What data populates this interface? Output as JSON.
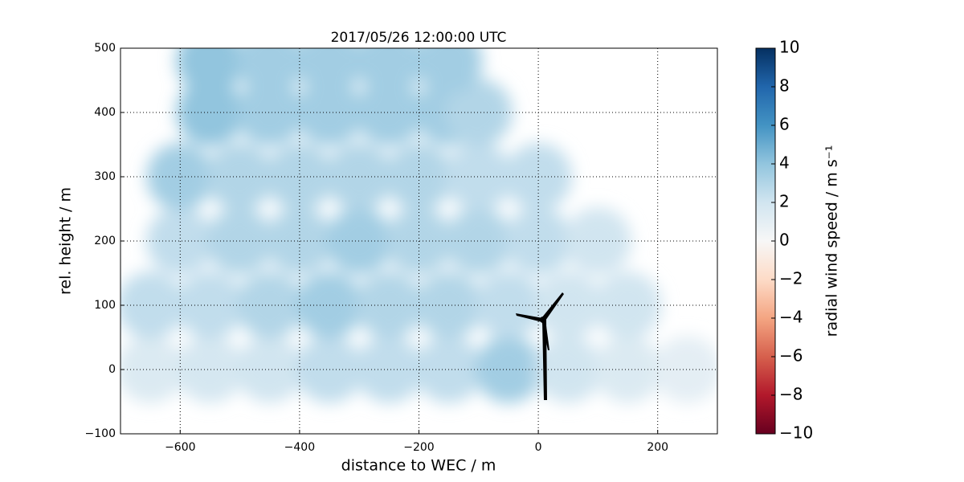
{
  "chart_data": {
    "type": "scatter",
    "title": "2017/05/26 12:00:00 UTC",
    "xlabel": "distance to WEC / m",
    "ylabel": "rel. height / m",
    "x": [
      -650,
      -550,
      -450,
      -350,
      -250,
      -150,
      -50,
      50,
      150,
      250,
      -650,
      -550,
      -450,
      -350,
      -250,
      -150,
      -50,
      50,
      150,
      -600,
      -500,
      -400,
      -300,
      -200,
      -100,
      0,
      100,
      -600,
      -500,
      -400,
      -300,
      -200,
      -100,
      0,
      -550,
      -450,
      -350,
      -250,
      -150,
      -100,
      -550,
      -450,
      -350,
      -250,
      -150
    ],
    "y": [
      0,
      0,
      0,
      0,
      0,
      0,
      0,
      0,
      0,
      0,
      100,
      100,
      100,
      100,
      100,
      100,
      100,
      100,
      100,
      200,
      200,
      200,
      200,
      200,
      200,
      200,
      200,
      300,
      300,
      300,
      300,
      300,
      300,
      300,
      400,
      400,
      400,
      400,
      400,
      400,
      480,
      480,
      480,
      480,
      480
    ],
    "values": [
      1.5,
      1.8,
      2,
      2.5,
      2.5,
      2.5,
      3.5,
      2,
      1.5,
      1,
      2.5,
      2.5,
      3,
      3.5,
      3,
      3,
      2.5,
      2,
      2,
      2.5,
      3,
      3,
      3.5,
      3,
      3,
      2.5,
      2,
      3.5,
      3,
      3,
      3,
      3,
      2.5,
      2.5,
      4,
      3.5,
      3.5,
      3.5,
      3.5,
      3,
      4,
      3.5,
      3.5,
      3.5,
      3.5
    ],
    "xlim": [
      -700,
      300
    ],
    "ylim": [
      -100,
      500
    ],
    "xticks": [
      {
        "value": -600,
        "label": "−600"
      },
      {
        "value": -400,
        "label": "−400"
      },
      {
        "value": -200,
        "label": "−200"
      },
      0,
      200
    ],
    "yticks": [
      {
        "value": -100,
        "label": "−100"
      },
      0,
      100,
      200,
      300,
      400,
      500
    ],
    "grid": true,
    "clim": [
      -10,
      10
    ],
    "colormap": [
      "#67001f",
      "#b2182b",
      "#d6604d",
      "#f4a582",
      "#fddbc7",
      "#f7f7f7",
      "#d1e5f0",
      "#92c5de",
      "#4393c3",
      "#2166ac",
      "#053061"
    ],
    "colorbar_label": "radial wind speed / m s⁻¹",
    "colorbar_ticks": [
      {
        "value": -10,
        "label": "−10"
      },
      {
        "value": -8,
        "label": "−8"
      },
      {
        "value": -6,
        "label": "−6"
      },
      {
        "value": -4,
        "label": "−4"
      },
      {
        "value": -2,
        "label": "−2"
      },
      0,
      2,
      4,
      6,
      8,
      10
    ]
  }
}
